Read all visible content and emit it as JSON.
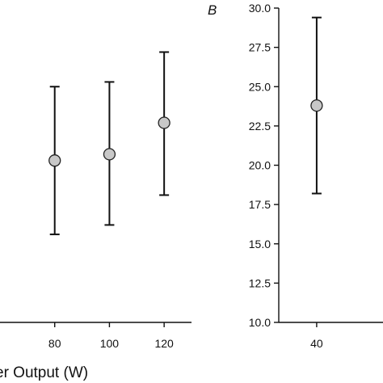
{
  "chart_data": [
    {
      "type": "scatter",
      "panel": "A",
      "x": [
        80,
        100,
        120
      ],
      "y": [
        20.3,
        20.7,
        22.7
      ],
      "error_low": [
        15.6,
        16.2,
        18.1
      ],
      "error_high": [
        25.0,
        25.3,
        27.2
      ],
      "xticks": [
        80,
        100,
        120
      ],
      "xlabel_visible": "er Output (W)",
      "xlim": [
        60,
        130
      ],
      "ylim": [
        10.0,
        30.0
      ],
      "grid": false
    },
    {
      "type": "scatter",
      "panel": "B",
      "panel_label": "B",
      "x": [
        40
      ],
      "y": [
        23.8
      ],
      "error_low": [
        18.2
      ],
      "error_high": [
        29.4
      ],
      "xticks": [
        40
      ],
      "xlim": [
        20,
        75
      ],
      "ylim": [
        10.0,
        30.0
      ],
      "yticks": [
        "10.0",
        "12.5",
        "15.0",
        "17.5",
        "20.0",
        "22.5",
        "25.0",
        "27.5",
        "30.0"
      ],
      "grid": false
    }
  ]
}
